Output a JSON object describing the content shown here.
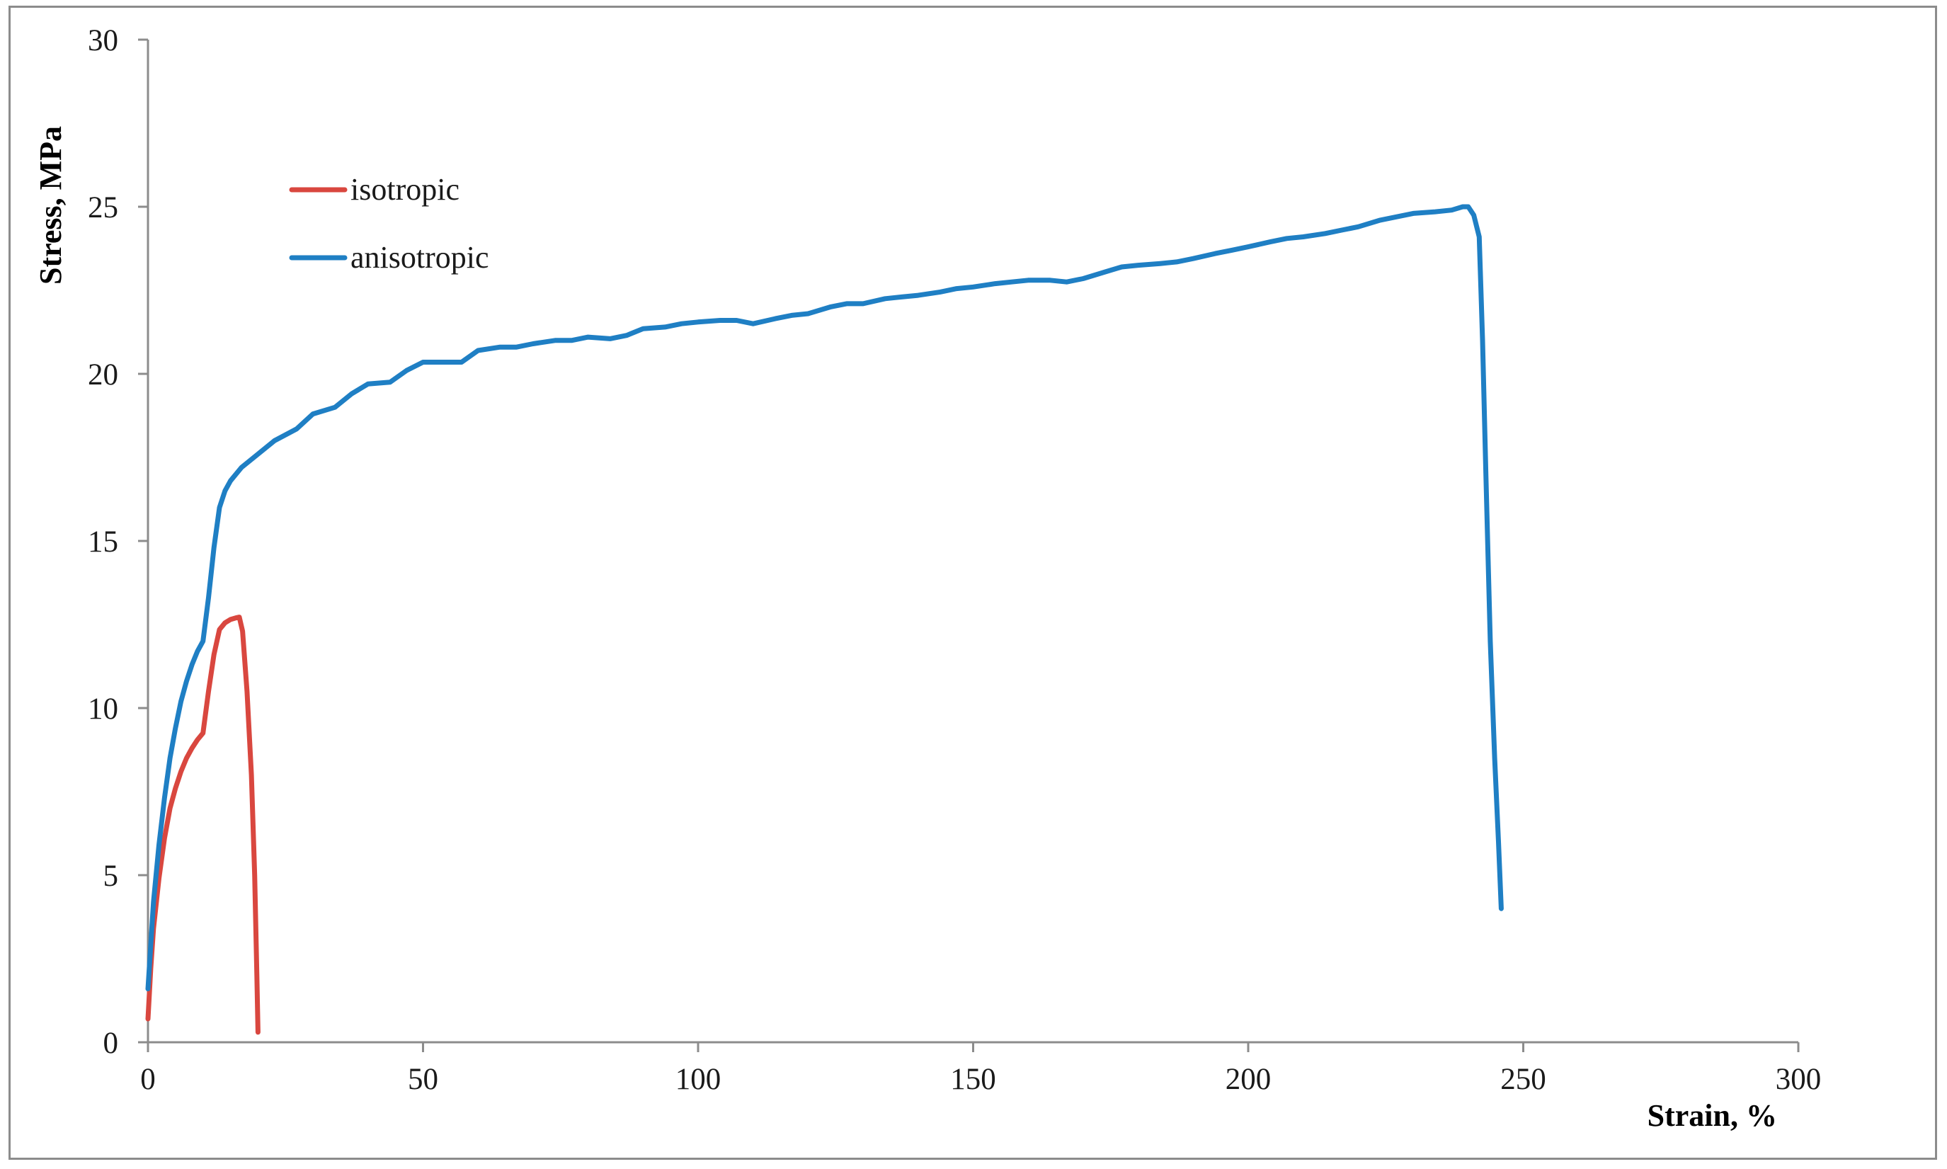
{
  "chart_data": {
    "type": "line",
    "title": "",
    "xlabel": "Strain, %",
    "ylabel": "Stress, MPa",
    "xlim": [
      0,
      300
    ],
    "ylim": [
      0,
      30
    ],
    "x_ticks": [
      "0",
      "50",
      "100",
      "150",
      "200",
      "250",
      "300"
    ],
    "y_ticks": [
      "0",
      "5",
      "10",
      "15",
      "20",
      "25",
      "30"
    ],
    "grid": false,
    "legend_position": "upper-left",
    "series": [
      {
        "name": "isotropic",
        "color": "#d9473f",
        "points": [
          [
            0,
            0.7
          ],
          [
            0.5,
            2.2
          ],
          [
            1,
            3.4
          ],
          [
            2,
            4.9
          ],
          [
            3,
            6.1
          ],
          [
            4,
            7.0
          ],
          [
            5,
            7.6
          ],
          [
            6,
            8.1
          ],
          [
            7,
            8.5
          ],
          [
            8,
            8.8
          ],
          [
            9,
            9.05
          ],
          [
            10,
            9.25
          ],
          [
            11,
            10.5
          ],
          [
            12,
            11.6
          ],
          [
            13,
            12.35
          ],
          [
            14,
            12.55
          ],
          [
            15,
            12.65
          ],
          [
            16,
            12.7
          ],
          [
            16.6,
            12.72
          ],
          [
            17.2,
            12.3
          ],
          [
            18,
            10.5
          ],
          [
            18.8,
            8.0
          ],
          [
            19.4,
            5.0
          ],
          [
            19.8,
            2.0
          ],
          [
            20,
            0.3
          ]
        ]
      },
      {
        "name": "anisotropic",
        "color": "#1f7fc4",
        "points": [
          [
            0,
            1.6
          ],
          [
            1,
            4.2
          ],
          [
            2,
            5.9
          ],
          [
            3,
            7.3
          ],
          [
            4,
            8.5
          ],
          [
            5,
            9.4
          ],
          [
            6,
            10.2
          ],
          [
            7,
            10.8
          ],
          [
            8,
            11.3
          ],
          [
            9,
            11.7
          ],
          [
            10,
            12.0
          ],
          [
            11,
            13.3
          ],
          [
            12,
            14.8
          ],
          [
            13,
            16.0
          ],
          [
            14,
            16.5
          ],
          [
            15,
            16.8
          ],
          [
            17,
            17.2
          ],
          [
            20,
            17.6
          ],
          [
            23,
            18.0
          ],
          [
            27,
            18.35
          ],
          [
            30,
            18.8
          ],
          [
            34,
            19.0
          ],
          [
            37,
            19.4
          ],
          [
            40,
            19.7
          ],
          [
            44,
            19.75
          ],
          [
            47,
            20.1
          ],
          [
            50,
            20.35
          ],
          [
            54,
            20.35
          ],
          [
            57,
            20.35
          ],
          [
            60,
            20.7
          ],
          [
            64,
            20.8
          ],
          [
            67,
            20.8
          ],
          [
            70,
            20.9
          ],
          [
            74,
            21.0
          ],
          [
            77,
            21.0
          ],
          [
            80,
            21.1
          ],
          [
            84,
            21.05
          ],
          [
            87,
            21.15
          ],
          [
            90,
            21.35
          ],
          [
            94,
            21.4
          ],
          [
            97,
            21.5
          ],
          [
            100,
            21.55
          ],
          [
            104,
            21.6
          ],
          [
            107,
            21.6
          ],
          [
            110,
            21.5
          ],
          [
            114,
            21.65
          ],
          [
            117,
            21.75
          ],
          [
            120,
            21.8
          ],
          [
            124,
            22.0
          ],
          [
            127,
            22.1
          ],
          [
            130,
            22.1
          ],
          [
            134,
            22.25
          ],
          [
            137,
            22.3
          ],
          [
            140,
            22.35
          ],
          [
            144,
            22.45
          ],
          [
            147,
            22.55
          ],
          [
            150,
            22.6
          ],
          [
            154,
            22.7
          ],
          [
            157,
            22.75
          ],
          [
            160,
            22.8
          ],
          [
            164,
            22.8
          ],
          [
            167,
            22.75
          ],
          [
            170,
            22.85
          ],
          [
            174,
            23.05
          ],
          [
            177,
            23.2
          ],
          [
            180,
            23.25
          ],
          [
            184,
            23.3
          ],
          [
            187,
            23.35
          ],
          [
            190,
            23.45
          ],
          [
            194,
            23.6
          ],
          [
            197,
            23.7
          ],
          [
            200,
            23.8
          ],
          [
            204,
            23.95
          ],
          [
            207,
            24.05
          ],
          [
            210,
            24.1
          ],
          [
            214,
            24.2
          ],
          [
            217,
            24.3
          ],
          [
            220,
            24.4
          ],
          [
            224,
            24.6
          ],
          [
            227,
            24.7
          ],
          [
            230,
            24.8
          ],
          [
            234,
            24.85
          ],
          [
            237,
            24.9
          ],
          [
            239,
            25.0
          ],
          [
            240,
            25.0
          ],
          [
            241,
            24.75
          ],
          [
            242,
            24.1
          ],
          [
            242.6,
            21.0
          ],
          [
            243.2,
            17.0
          ],
          [
            244,
            12.0
          ],
          [
            244.8,
            8.5
          ],
          [
            245.5,
            6.0
          ],
          [
            246,
            4.0
          ]
        ]
      }
    ]
  }
}
